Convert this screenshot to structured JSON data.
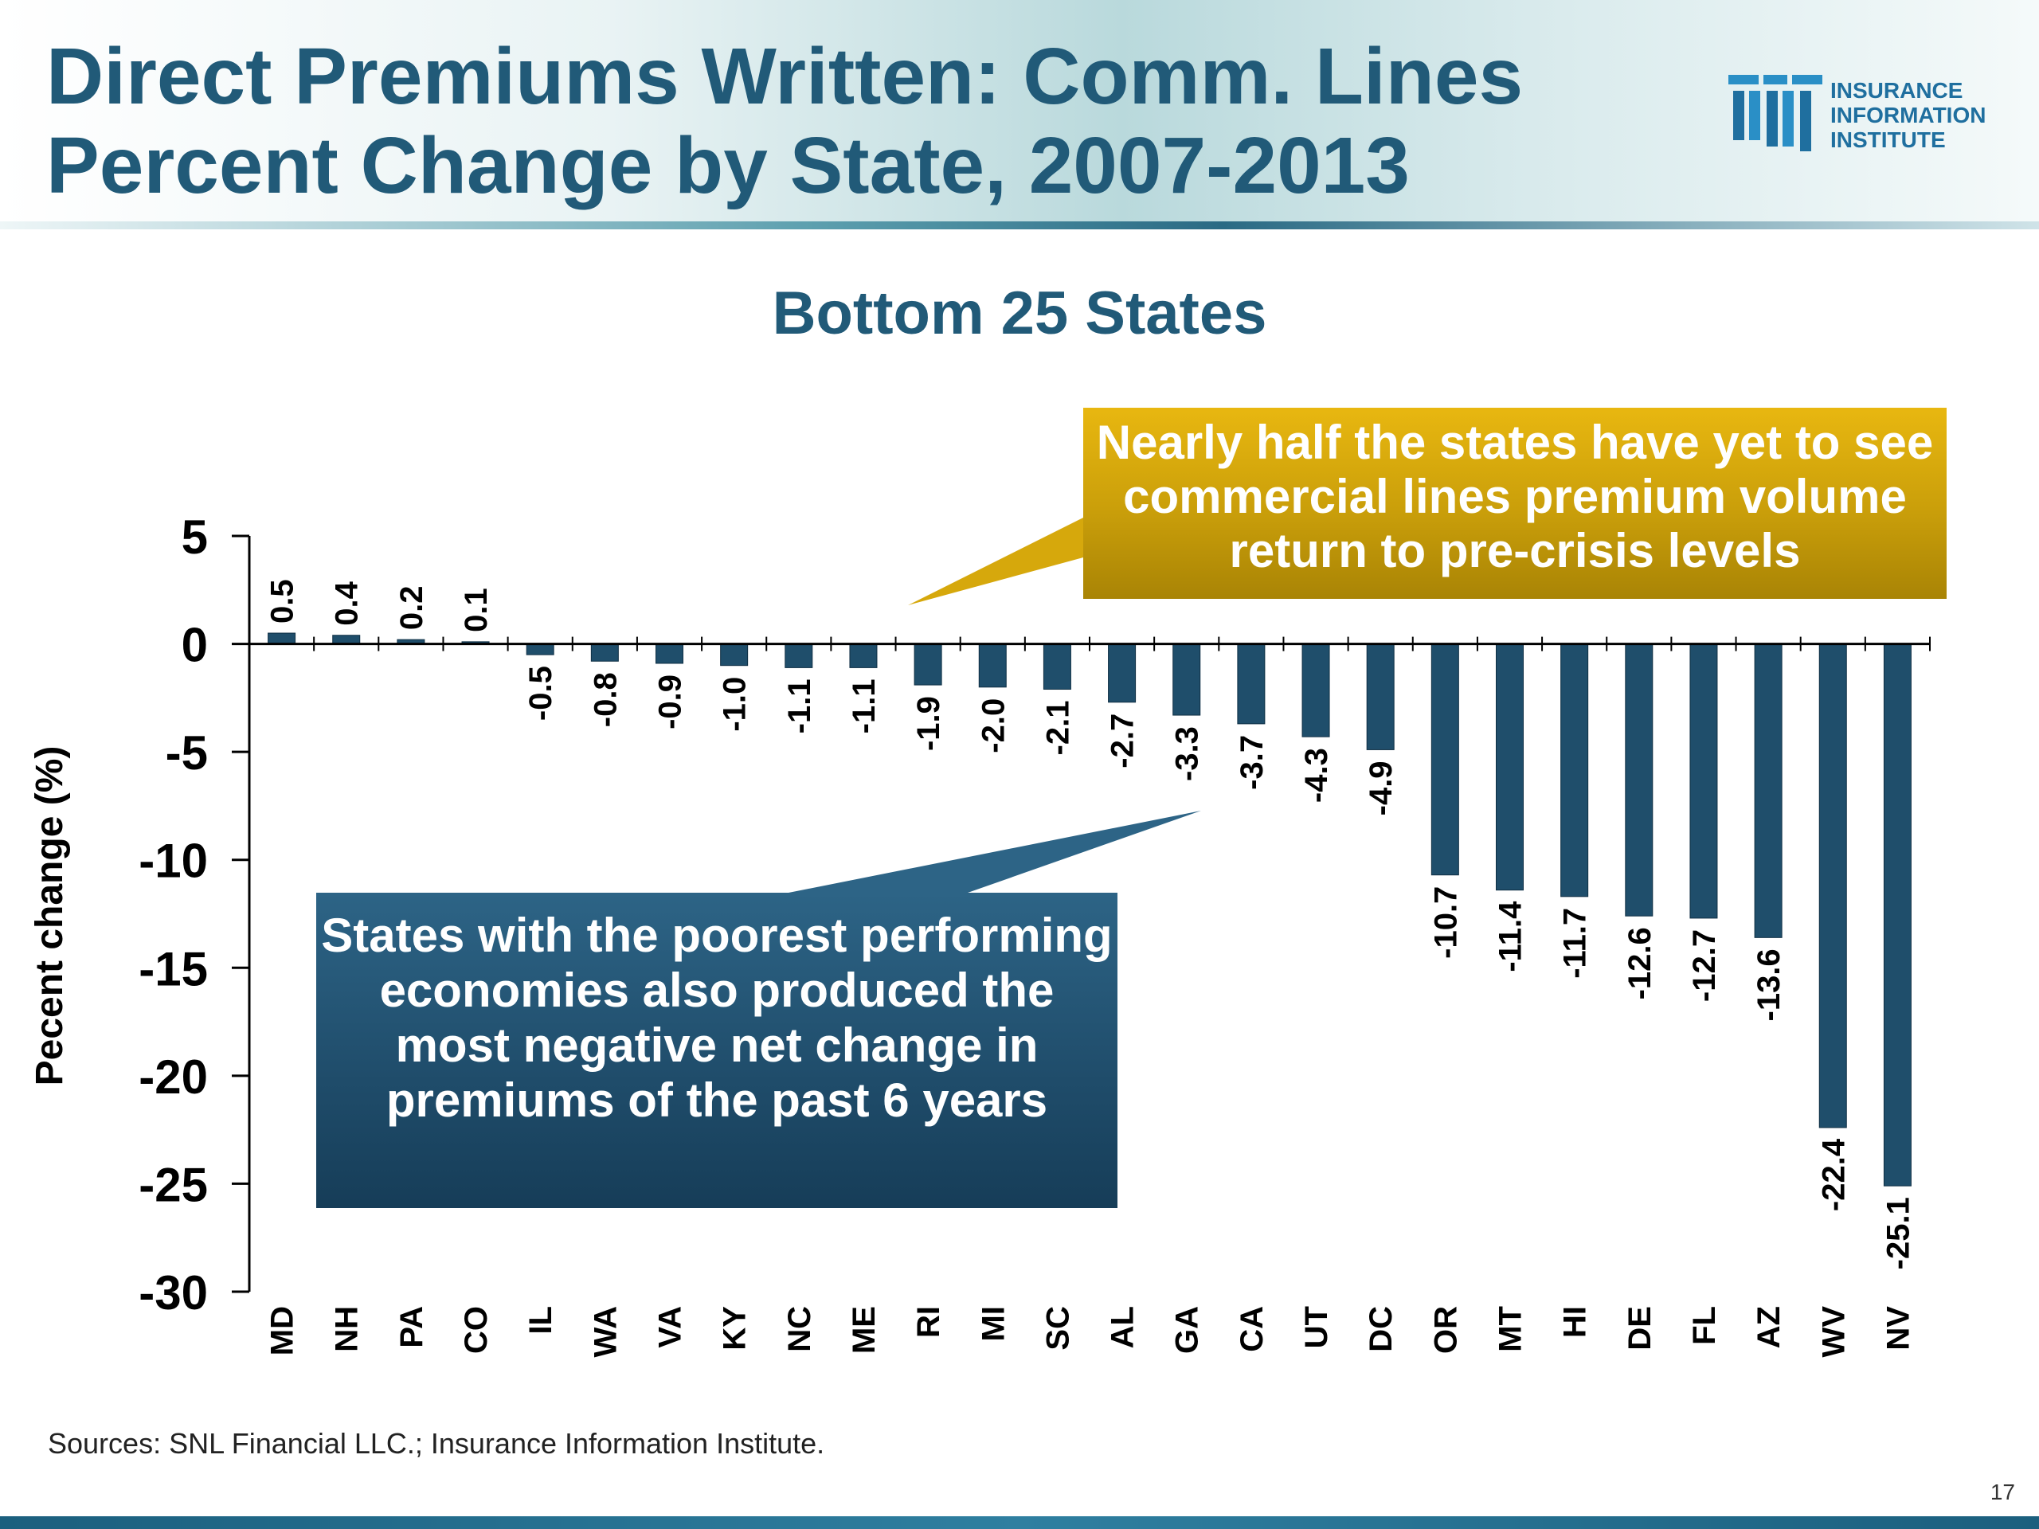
{
  "slide": {
    "title_line1": "Direct Premiums Written: Comm. Lines",
    "title_line2": "Percent Change by State, 2007-2013",
    "logo_line1": "INSURANCE",
    "logo_line2": "INFORMATION",
    "logo_line3": "INSTITUTE",
    "sources": "Sources:  SNL Financial LLC.; Insurance Information Institute.",
    "page_number": "17"
  },
  "callouts": {
    "yellow": "Nearly half the states have yet to see commercial lines premium volume return to pre-crisis levels",
    "blue": "States with the poorest performing economies also produced the most negative net change in premiums of the past 6 years"
  },
  "colors": {
    "bar": "#1f4e6b",
    "title": "#215a78",
    "callout_yellow": "#c99e0a",
    "callout_blue": "#1f4c6a"
  },
  "chart_data": {
    "type": "bar",
    "title": "Bottom 25 States",
    "xlabel": "",
    "ylabel": "Pecent change (%)",
    "ylim": [
      -30,
      5
    ],
    "yticks": [
      5,
      0,
      -5,
      -10,
      -15,
      -20,
      -25,
      -30
    ],
    "categories": [
      "MD",
      "NH",
      "PA",
      "CO",
      "IL",
      "WA",
      "VA",
      "KY",
      "NC",
      "ME",
      "RI",
      "MI",
      "SC",
      "AL",
      "GA",
      "CA",
      "UT",
      "DC",
      "OR",
      "MT",
      "HI",
      "DE",
      "FL",
      "AZ",
      "WV",
      "NV"
    ],
    "values": [
      0.5,
      0.4,
      0.2,
      0.1,
      -0.5,
      -0.8,
      -0.9,
      -1.0,
      -1.1,
      -1.1,
      -1.9,
      -2.0,
      -2.1,
      -2.7,
      -3.3,
      -3.7,
      -4.3,
      -4.9,
      -10.7,
      -11.4,
      -11.7,
      -12.6,
      -12.7,
      -13.6,
      -22.4,
      -25.1
    ],
    "data_labels": [
      "0.5",
      "0.4",
      "0.2",
      "0.1",
      "-0.5",
      "-0.8",
      "-0.9",
      "-1.0",
      "-1.1",
      "-1.1",
      "-1.9",
      "-2.0",
      "-2.1",
      "-2.7",
      "-3.3",
      "-3.7",
      "-4.3",
      "-4.9",
      "-10.7",
      "-11.4",
      "-11.7",
      "-12.6",
      "-12.7",
      "-13.6",
      "-22.4",
      "-25.1"
    ],
    "grid": false,
    "legend": "none"
  }
}
